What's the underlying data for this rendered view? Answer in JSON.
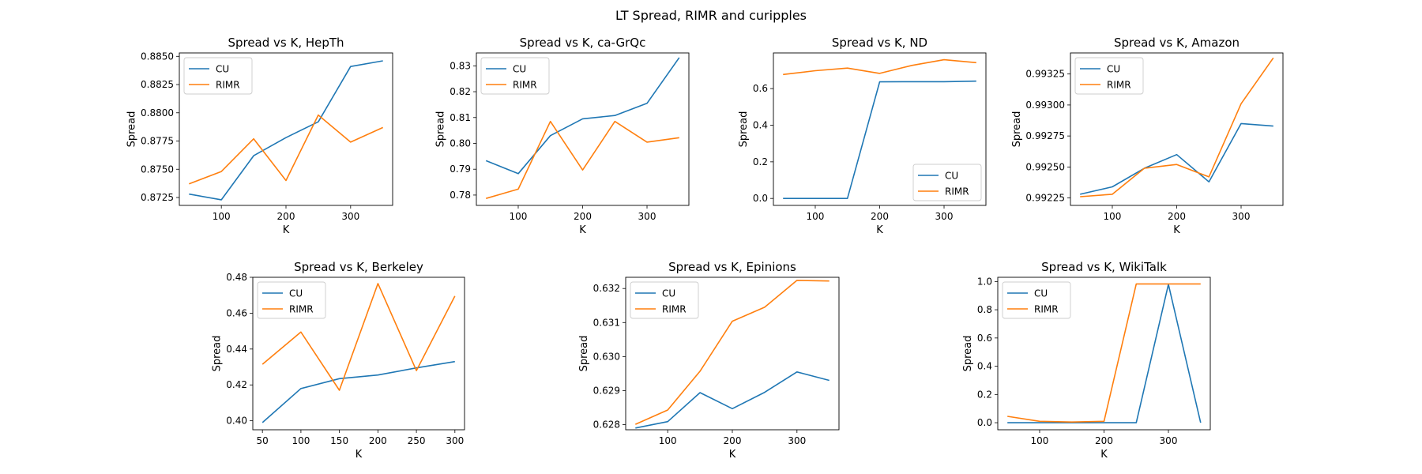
{
  "figure": {
    "title": "LT Spread, RIMR and curipples",
    "series_colors": {
      "CU": "#1f77b4",
      "RIMR": "#ff7f0e"
    }
  },
  "chart_data": [
    {
      "type": "line",
      "title": "Spread vs K, HepTh",
      "xlabel": "K",
      "ylabel": "Spread",
      "x": [
        50,
        100,
        150,
        200,
        250,
        300,
        350
      ],
      "xlim": [
        35,
        365
      ],
      "ylim": [
        0.8718,
        0.8853
      ],
      "xticks": [
        100,
        200,
        300
      ],
      "yticks": [
        0.8725,
        0.875,
        0.8775,
        0.88,
        0.8825,
        0.885
      ],
      "ytick_labels": [
        "0.8725",
        "0.8750",
        "0.8775",
        "0.8800",
        "0.8825",
        "0.8850"
      ],
      "legend": "upper left",
      "series": [
        {
          "name": "CU",
          "values": [
            0.8728,
            0.8723,
            0.8762,
            0.8778,
            0.8792,
            0.8841,
            0.8846
          ]
        },
        {
          "name": "RIMR",
          "values": [
            0.8737,
            0.8748,
            0.8777,
            0.874,
            0.8798,
            0.8774,
            0.8787
          ]
        }
      ]
    },
    {
      "type": "line",
      "title": "Spread vs K, ca-GrQc",
      "xlabel": "K",
      "ylabel": "Spread",
      "x": [
        50,
        100,
        150,
        200,
        250,
        300,
        350
      ],
      "xlim": [
        35,
        365
      ],
      "ylim": [
        0.776,
        0.835
      ],
      "xticks": [
        100,
        200,
        300
      ],
      "yticks": [
        0.78,
        0.79,
        0.8,
        0.81,
        0.82,
        0.83
      ],
      "ytick_labels": [
        "0.78",
        "0.79",
        "0.80",
        "0.81",
        "0.82",
        "0.83"
      ],
      "legend": "upper left",
      "series": [
        {
          "name": "CU",
          "values": [
            0.7933,
            0.7883,
            0.803,
            0.8095,
            0.8108,
            0.8155,
            0.8332
          ]
        },
        {
          "name": "RIMR",
          "values": [
            0.7787,
            0.7823,
            0.8085,
            0.7897,
            0.8085,
            0.8005,
            0.8022
          ]
        }
      ]
    },
    {
      "type": "line",
      "title": "Spread vs K, ND",
      "xlabel": "K",
      "ylabel": "Spread",
      "x": [
        50,
        100,
        150,
        200,
        250,
        300,
        350
      ],
      "xlim": [
        35,
        365
      ],
      "ylim": [
        -0.038,
        0.795
      ],
      "xticks": [
        100,
        200,
        300
      ],
      "yticks": [
        0,
        0.2,
        0.4,
        0.6
      ],
      "ytick_labels": [
        "0.0",
        "0.2",
        "0.4",
        "0.6"
      ],
      "legend": "lower right",
      "series": [
        {
          "name": "CU",
          "values": [
            0.0,
            0.0,
            0.0,
            0.637,
            0.638,
            0.638,
            0.641
          ]
        },
        {
          "name": "RIMR",
          "values": [
            0.677,
            0.698,
            0.712,
            0.683,
            0.727,
            0.758,
            0.742
          ]
        }
      ]
    },
    {
      "type": "line",
      "title": "Spread vs K, Amazon",
      "xlabel": "K",
      "ylabel": "Spread",
      "x": [
        50,
        100,
        150,
        200,
        250,
        300,
        350
      ],
      "xlim": [
        35,
        365
      ],
      "ylim": [
        0.99219,
        0.99342
      ],
      "xticks": [
        100,
        200,
        300
      ],
      "yticks": [
        0.99225,
        0.9925,
        0.99275,
        0.993,
        0.99325
      ],
      "ytick_labels": [
        "0.99225",
        "0.99250",
        "0.99275",
        "0.99300",
        "0.99325"
      ],
      "legend": "upper left",
      "series": [
        {
          "name": "CU",
          "values": [
            0.99228,
            0.99234,
            0.99249,
            0.9926,
            0.99238,
            0.99285,
            0.99283
          ]
        },
        {
          "name": "RIMR",
          "values": [
            0.99226,
            0.99228,
            0.99249,
            0.99252,
            0.99242,
            0.99301,
            0.99338
          ]
        }
      ]
    },
    {
      "type": "line",
      "title": "Spread vs K, Berkeley",
      "xlabel": "K",
      "ylabel": "Spread",
      "x": [
        50,
        100,
        150,
        200,
        250,
        300
      ],
      "xlim": [
        37.5,
        312.5
      ],
      "ylim": [
        0.395,
        0.48
      ],
      "xticks": [
        50,
        100,
        150,
        200,
        250,
        300
      ],
      "yticks": [
        0.4,
        0.42,
        0.44,
        0.46,
        0.48
      ],
      "ytick_labels": [
        "0.40",
        "0.42",
        "0.44",
        "0.46",
        "0.48"
      ],
      "legend": "upper left",
      "series": [
        {
          "name": "CU",
          "values": [
            0.399,
            0.418,
            0.4235,
            0.4255,
            0.4295,
            0.433
          ]
        },
        {
          "name": "RIMR",
          "values": [
            0.4315,
            0.4495,
            0.417,
            0.4765,
            0.428,
            0.4695
          ]
        }
      ]
    },
    {
      "type": "line",
      "title": "Spread vs K, Epinions",
      "xlabel": "K",
      "ylabel": "Spread",
      "x": [
        50,
        100,
        150,
        200,
        250,
        300,
        350
      ],
      "xlim": [
        35,
        365
      ],
      "ylim": [
        0.62785,
        0.63233
      ],
      "xticks": [
        100,
        200,
        300
      ],
      "yticks": [
        0.628,
        0.629,
        0.63,
        0.631,
        0.632
      ],
      "ytick_labels": [
        "0.628",
        "0.629",
        "0.630",
        "0.631",
        "0.632"
      ],
      "legend": "upper left",
      "series": [
        {
          "name": "CU",
          "values": [
            0.6279,
            0.62809,
            0.62894,
            0.62847,
            0.62895,
            0.62955,
            0.6293
          ]
        },
        {
          "name": "RIMR",
          "values": [
            0.62801,
            0.62843,
            0.62957,
            0.63104,
            0.63145,
            0.63224,
            0.63222
          ]
        }
      ]
    },
    {
      "type": "line",
      "title": "Spread vs K, WikiTalk",
      "xlabel": "K",
      "ylabel": "Spread",
      "x": [
        50,
        100,
        150,
        200,
        250,
        300,
        350
      ],
      "xlim": [
        35,
        365
      ],
      "ylim": [
        -0.05,
        1.03
      ],
      "xticks": [
        100,
        200,
        300
      ],
      "yticks": [
        0,
        0.2,
        0.4,
        0.6,
        0.8,
        1.0
      ],
      "ytick_labels": [
        "0.0",
        "0.2",
        "0.4",
        "0.6",
        "0.8",
        "1.0"
      ],
      "legend": "upper left",
      "series": [
        {
          "name": "CU",
          "values": [
            0.0,
            0.0,
            0.0,
            0.0,
            0.0,
            0.98,
            0.0
          ]
        },
        {
          "name": "RIMR",
          "values": [
            0.045,
            0.01,
            0.005,
            0.01,
            0.983,
            0.983,
            0.983
          ]
        }
      ]
    }
  ]
}
